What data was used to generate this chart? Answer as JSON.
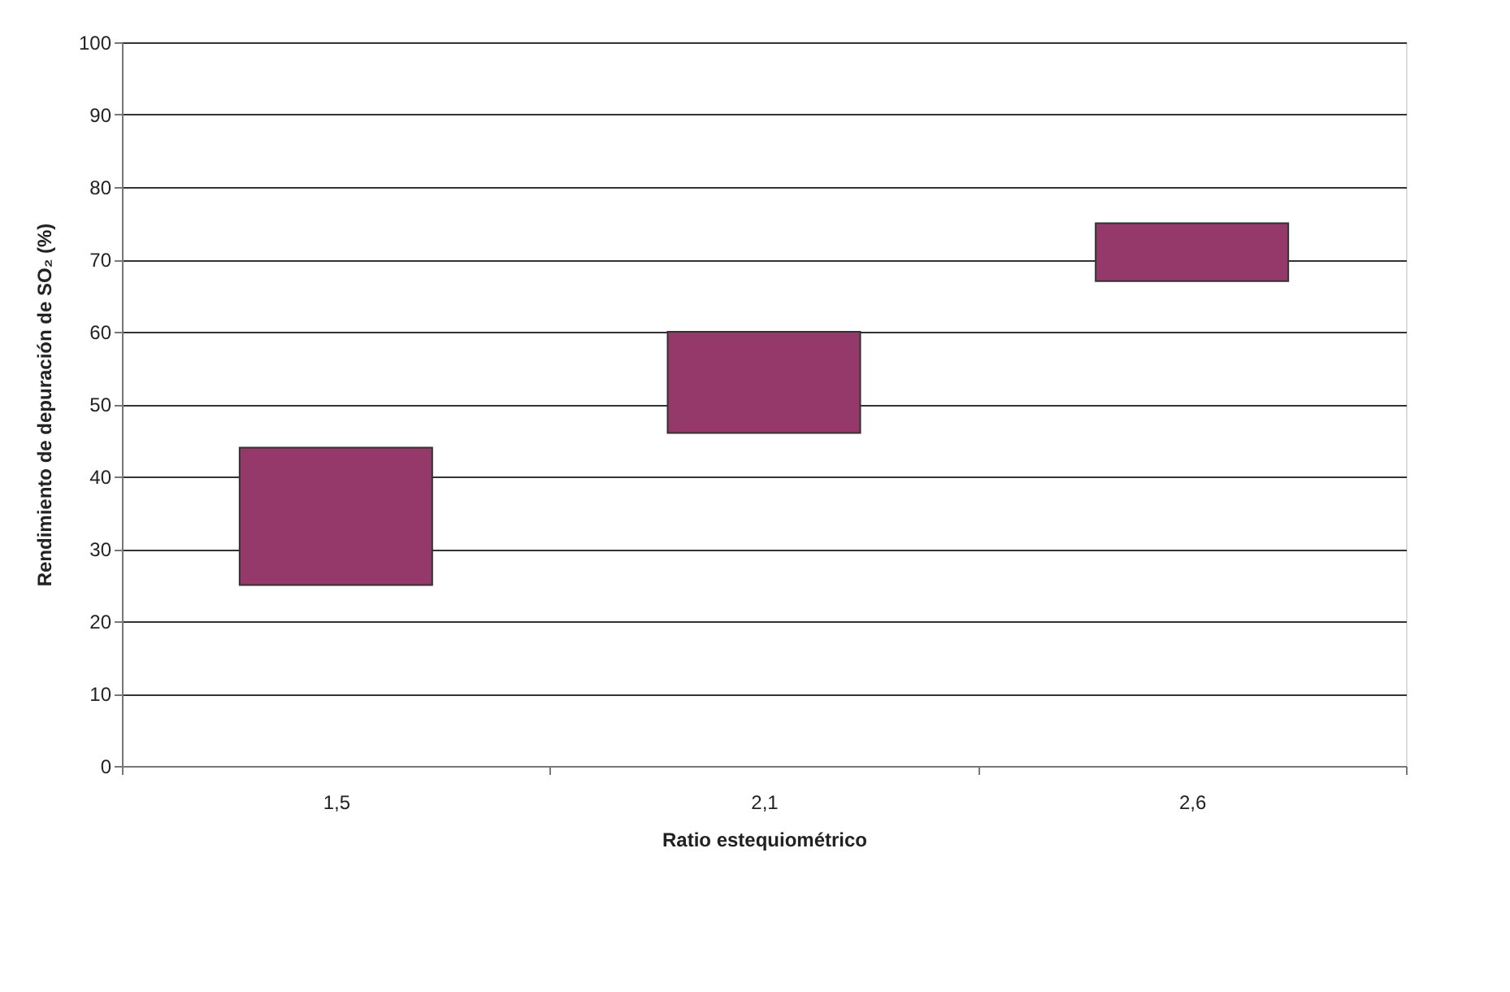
{
  "chart_data": {
    "type": "bar",
    "xlabel": "Ratio estequiométrico",
    "ylabel": "Rendimiento de depuración de SO₂ (%)",
    "categories": [
      "1,5",
      "2,1",
      "2,6"
    ],
    "values": [
      19,
      14,
      8
    ],
    "base": [
      25,
      46,
      67
    ],
    "color": "#943969",
    "ylim": [
      0,
      100
    ],
    "yticks": [
      0,
      10,
      20,
      30,
      40,
      50,
      60,
      70,
      80,
      90,
      100
    ],
    "grid": "y"
  }
}
